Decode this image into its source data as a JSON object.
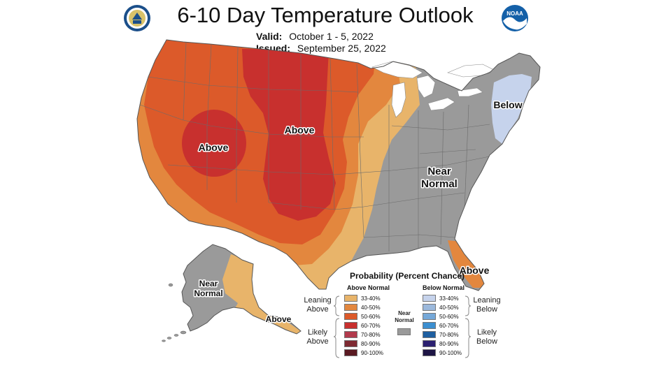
{
  "header": {
    "title": "6-10 Day Temperature Outlook",
    "valid_label": "Valid:",
    "valid_value": "October 1 - 5, 2022",
    "issued_label": "Issued:",
    "issued_value": "September 25, 2022",
    "logo_left": "U.S. Department of Commerce seal",
    "logo_right": "NOAA"
  },
  "map": {
    "labels": {
      "above_west": "Above",
      "above_central": "Above",
      "below_northeast": "Below",
      "near_normal_east_1": "Near",
      "near_normal_east_2": "Normal",
      "above_florida": "Above",
      "near_normal_alaska_1": "Near",
      "near_normal_alaska_2": "Normal",
      "above_alaska": "Above"
    }
  },
  "legend": {
    "title": "Probability (Percent Chance)",
    "above_header": "Above Normal",
    "below_header": "Below Normal",
    "near_normal_1": "Near",
    "near_normal_2": "Normal",
    "near_normal_color": "#9a9a9a",
    "leaning_above_1": "Leaning",
    "leaning_above_2": "Above",
    "likely_above_1": "Likely",
    "likely_above_2": "Above",
    "leaning_below_1": "Leaning",
    "leaning_below_2": "Below",
    "likely_below_1": "Likely",
    "likely_below_2": "Below",
    "above": [
      {
        "label": "33-40%",
        "color": "#e8b46a"
      },
      {
        "label": "40-50%",
        "color": "#e3873e"
      },
      {
        "label": "50-60%",
        "color": "#dc5a2a"
      },
      {
        "label": "60-70%",
        "color": "#c8302e"
      },
      {
        "label": "70-80%",
        "color": "#b23a4c"
      },
      {
        "label": "80-90%",
        "color": "#7e2a32"
      },
      {
        "label": "90-100%",
        "color": "#5a1a22"
      }
    ],
    "below": [
      {
        "label": "33-40%",
        "color": "#c6d3ec"
      },
      {
        "label": "40-50%",
        "color": "#9cb9dc"
      },
      {
        "label": "50-60%",
        "color": "#75a8d8"
      },
      {
        "label": "60-70%",
        "color": "#3c8fd0"
      },
      {
        "label": "70-80%",
        "color": "#1e5fa0"
      },
      {
        "label": "80-90%",
        "color": "#2b2070"
      },
      {
        "label": "90-100%",
        "color": "#1e1545"
      }
    ]
  }
}
